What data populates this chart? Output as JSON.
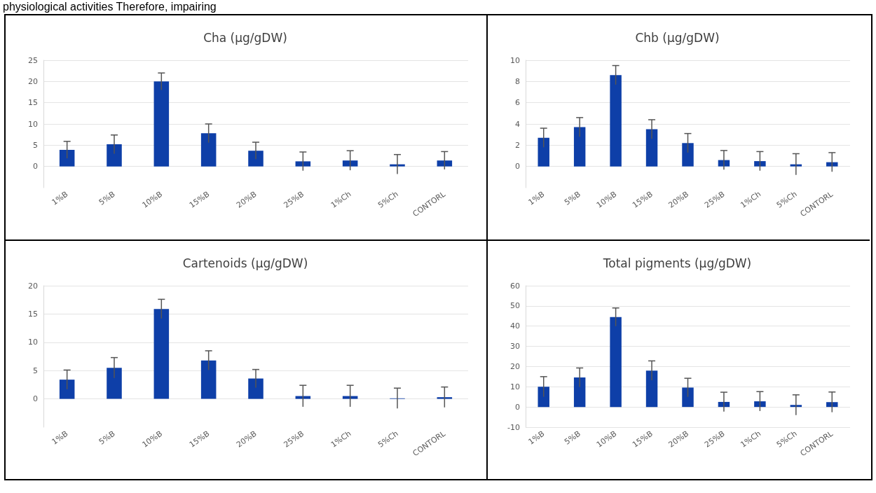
{
  "chart_data": [
    {
      "type": "bar",
      "title": "Cha (µg/gDW)",
      "annotations": [
        "physiological activities Therefore, impairing"
      ],
      "categories": [
        "1%B",
        "5%B",
        "10%B",
        "15%B",
        "20%B",
        "25%B",
        "1%Ch",
        "5%Ch",
        "CONTORL"
      ],
      "color": "#0e3fa8",
      "values": [
        3.9,
        5.2,
        20,
        7.8,
        3.7,
        1.2,
        1.4,
        0.5,
        1.4
      ],
      "errors": [
        2,
        2.2,
        2,
        2.2,
        2,
        2.2,
        2.3,
        2.3,
        2.1
      ],
      "ylim": [
        -5,
        25
      ],
      "yticks": [
        0,
        5,
        10,
        15,
        20,
        25
      ],
      "grid": "y"
    },
    {
      "type": "bar",
      "title": "Chb (µg/gDW)",
      "categories": [
        "1%B",
        "5%B",
        "10%B",
        "15%B",
        "20%B",
        "25%B",
        "1%Ch",
        "5%Ch",
        "CONTORL"
      ],
      "color": "#0e3fa8",
      "values": [
        2.7,
        3.7,
        8.6,
        3.5,
        2.2,
        0.6,
        0.5,
        0.2,
        0.4
      ],
      "errors": [
        0.9,
        0.9,
        0.9,
        0.9,
        0.9,
        0.9,
        0.9,
        1,
        0.9
      ],
      "ylim": [
        -2,
        10
      ],
      "yticks": [
        0,
        2,
        4,
        6,
        8,
        10
      ],
      "grid": "y"
    },
    {
      "type": "bar",
      "title": "Cartenoids (µg/gDW)",
      "categories": [
        "1%B",
        "5%B",
        "10%B",
        "15%B",
        "20%B",
        "25%B",
        "1%Ch",
        "5%Ch",
        "CONTORL"
      ],
      "color": "#0e3fa8",
      "values": [
        3.4,
        5.5,
        15.9,
        6.8,
        3.6,
        0.5,
        0.5,
        0.1,
        0.3
      ],
      "errors": [
        1.7,
        1.8,
        1.7,
        1.7,
        1.6,
        1.9,
        1.9,
        1.8,
        1.8
      ],
      "ylim": [
        -5,
        20
      ],
      "yticks": [
        0,
        5,
        10,
        15,
        20
      ],
      "grid": "y"
    },
    {
      "type": "bar",
      "title": "Total pigments (µg/gDW)",
      "categories": [
        "1%B",
        "5%B",
        "10%B",
        "15%B",
        "20%B",
        "25%B",
        "1%Ch",
        "5%Ch",
        "CONTORL"
      ],
      "color": "#0e3fa8",
      "values": [
        10,
        14.6,
        44.5,
        18,
        9.6,
        2.5,
        2.8,
        1,
        2.4
      ],
      "errors": [
        5,
        4.7,
        4.5,
        4.8,
        4.6,
        4.8,
        4.8,
        5,
        5
      ],
      "ylim": [
        -10,
        60
      ],
      "yticks": [
        -10,
        0,
        10,
        20,
        30,
        40,
        50,
        60
      ],
      "grid": "y"
    }
  ]
}
